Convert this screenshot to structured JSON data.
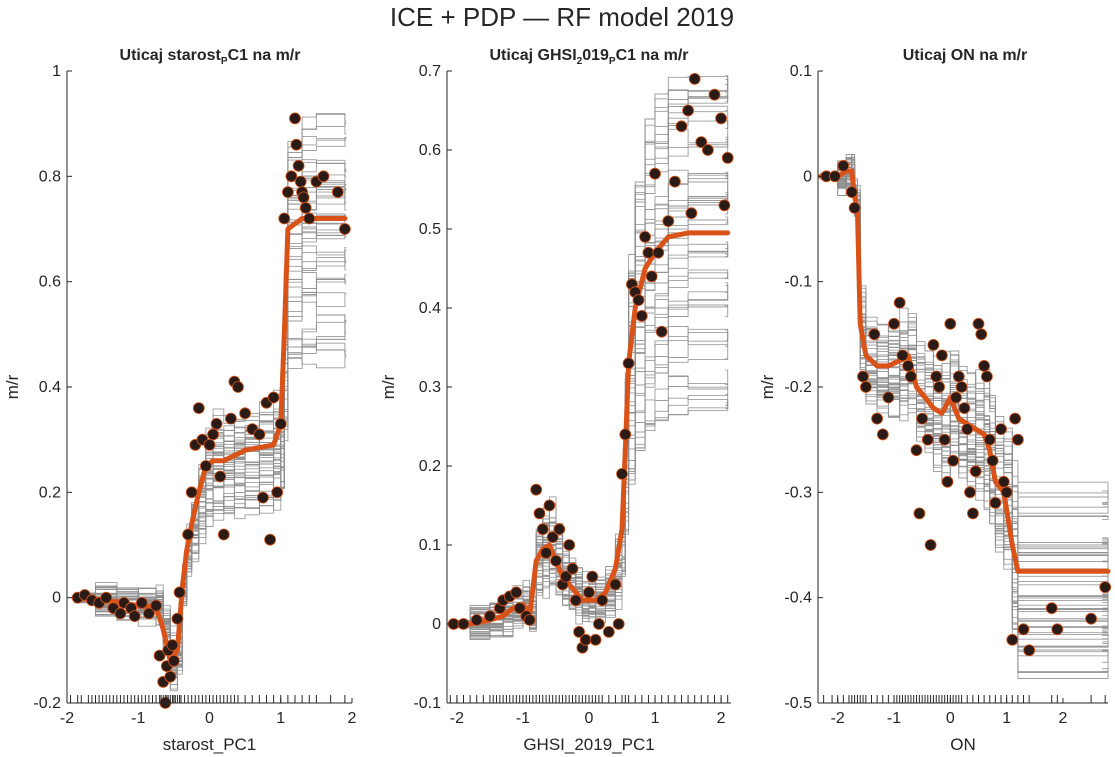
{
  "figure_title": "ICE + PDP — RF model 2019",
  "colors": {
    "ice": "#8c8c8c",
    "pdp": "#d95319",
    "marker_fill": "#2b1b17",
    "marker_edge": "#d95319",
    "axis": "#262626"
  },
  "chart_data": [
    {
      "type": "line",
      "title": "Uticaj  starost_PC1  na  m/r",
      "title_parts": {
        "pre": "Uticaj  starost",
        "sub": "P",
        "post": "C1  na  m/r"
      },
      "xlabel": "starost_PC1",
      "ylabel": "m/r",
      "xlim": [
        -2,
        2
      ],
      "ylim": [
        -0.2,
        1
      ],
      "xticks": [
        -2,
        -1,
        0,
        1,
        2
      ],
      "yticks": [
        -0.2,
        0,
        0.2,
        0.4,
        0.6,
        0.8,
        1
      ],
      "ytick_labels": [
        "-0.2",
        "0",
        "0.2",
        "0.4",
        "0.6",
        "0.8",
        "1"
      ],
      "pdp": {
        "name": "PDP",
        "x": [
          -1.9,
          -1.6,
          -1.3,
          -1.0,
          -0.75,
          -0.65,
          -0.55,
          -0.45,
          -0.38,
          -0.32,
          -0.25,
          -0.15,
          -0.05,
          0.05,
          0.2,
          0.35,
          0.5,
          0.7,
          0.9,
          1.0,
          1.05,
          1.1,
          1.3,
          1.5,
          1.9
        ],
        "y": [
          0,
          -0.003,
          -0.008,
          -0.015,
          -0.018,
          -0.06,
          -0.12,
          -0.1,
          0.02,
          0.09,
          0.14,
          0.2,
          0.25,
          0.26,
          0.26,
          0.27,
          0.28,
          0.285,
          0.29,
          0.33,
          0.5,
          0.7,
          0.72,
          0.72,
          0.72
        ]
      },
      "ice": {
        "n": 50,
        "x": [
          -1.9,
          -1.6,
          -1.3,
          -1.0,
          -0.75,
          -0.65,
          -0.55,
          -0.45,
          -0.38,
          -0.32,
          -0.25,
          -0.15,
          -0.05,
          0.05,
          0.2,
          0.35,
          0.5,
          0.7,
          0.9,
          1.0,
          1.05,
          1.1,
          1.3,
          1.5,
          1.9
        ],
        "start_min": -0.01,
        "start_max": 0.01,
        "end_min": 0.45,
        "end_max": 0.9
      },
      "points": {
        "x": [
          -1.85,
          -1.75,
          -1.65,
          -1.55,
          -1.45,
          -1.35,
          -1.25,
          -1.2,
          -1.1,
          -1.05,
          -0.95,
          -0.85,
          -0.75,
          -0.7,
          -0.65,
          -0.62,
          -0.6,
          -0.58,
          -0.55,
          -0.52,
          -0.5,
          -0.45,
          -0.42,
          -0.3,
          -0.25,
          -0.2,
          -0.15,
          -0.1,
          -0.05,
          0.0,
          0.05,
          0.1,
          0.15,
          0.2,
          0.3,
          0.35,
          0.4,
          0.5,
          0.6,
          0.7,
          0.75,
          0.8,
          0.85,
          0.9,
          0.95,
          1.0,
          1.05,
          1.1,
          1.15,
          1.2,
          1.22,
          1.25,
          1.28,
          1.3,
          1.32,
          1.35,
          1.4,
          1.5,
          1.6,
          1.8,
          1.9
        ],
        "y": [
          0,
          0.005,
          -0.005,
          -0.01,
          0,
          -0.02,
          -0.03,
          -0.01,
          -0.02,
          -0.035,
          -0.01,
          -0.03,
          -0.015,
          -0.11,
          -0.16,
          -0.2,
          -0.13,
          -0.1,
          -0.15,
          -0.09,
          -0.12,
          -0.04,
          0.01,
          0.12,
          0.2,
          0.29,
          0.36,
          0.3,
          0.25,
          0.29,
          0.31,
          0.33,
          0.23,
          0.12,
          0.34,
          0.41,
          0.4,
          0.35,
          0.32,
          0.31,
          0.19,
          0.37,
          0.11,
          0.38,
          0.2,
          0.33,
          0.72,
          0.77,
          0.8,
          0.91,
          0.86,
          0.82,
          0.79,
          0.77,
          0.76,
          0.74,
          0.72,
          0.79,
          0.8,
          0.77,
          0.7
        ]
      },
      "rug": [
        -1.95,
        -1.85,
        -1.8,
        -1.7,
        -1.65,
        -1.6,
        -1.55,
        -1.5,
        -1.45,
        -1.4,
        -1.35,
        -1.3,
        -1.25,
        -1.2,
        -1.15,
        -1.1,
        -1.05,
        -1.0,
        -0.95,
        -0.9,
        -0.85,
        -0.8,
        -0.75,
        -0.7,
        -0.68,
        -0.65,
        -0.62,
        -0.6,
        -0.58,
        -0.55,
        -0.52,
        -0.5,
        -0.48,
        -0.45,
        -0.42,
        -0.4,
        -0.35,
        -0.3,
        -0.25,
        -0.2,
        -0.15,
        -0.1,
        -0.05,
        0,
        0.05,
        0.1,
        0.15,
        0.2,
        0.25,
        0.3,
        0.35,
        0.4,
        0.5,
        0.6,
        0.7,
        0.8,
        0.9,
        1.0,
        1.1,
        1.2,
        1.3,
        1.4,
        1.5,
        1.7,
        1.9
      ]
    },
    {
      "type": "line",
      "title": "Uticaj  GHSI_2019_PC1  na  m/r",
      "title_parts": {
        "pre": "Uticaj  GHSI",
        "sub": "2",
        "post": "019",
        "sub2": "P",
        "post2": "C1  na  m/r"
      },
      "xlabel": "GHSI_2019_PC1",
      "ylabel": "m/r",
      "xlim": [
        -2.15,
        2.15
      ],
      "ylim": [
        -0.1,
        0.7
      ],
      "xticks": [
        -2,
        -1,
        0,
        1,
        2
      ],
      "yticks": [
        -0.1,
        0,
        0.1,
        0.2,
        0.3,
        0.4,
        0.5,
        0.6,
        0.7
      ],
      "ytick_labels": [
        "-0.1",
        "0",
        "0.1",
        "0.2",
        "0.3",
        "0.4",
        "0.5",
        "0.6",
        "0.7"
      ],
      "pdp": {
        "name": "PDP",
        "x": [
          -2.1,
          -1.8,
          -1.5,
          -1.3,
          -1.15,
          -1.0,
          -0.9,
          -0.8,
          -0.7,
          -0.6,
          -0.5,
          -0.4,
          -0.3,
          -0.2,
          -0.1,
          0.0,
          0.1,
          0.25,
          0.4,
          0.5,
          0.55,
          0.6,
          0.7,
          0.85,
          1.0,
          1.2,
          1.5,
          2.1
        ],
        "y": [
          0,
          0,
          0.005,
          0.01,
          0.02,
          0.025,
          0.01,
          0.08,
          0.095,
          0.1,
          0.08,
          0.06,
          0.05,
          0.04,
          0.03,
          0.03,
          0.03,
          0.04,
          0.07,
          0.12,
          0.22,
          0.33,
          0.4,
          0.45,
          0.47,
          0.49,
          0.495,
          0.495
        ]
      },
      "ice": {
        "n": 50,
        "x": [
          -2.1,
          -1.8,
          -1.5,
          -1.3,
          -1.15,
          -1.0,
          -0.9,
          -0.8,
          -0.7,
          -0.6,
          -0.5,
          -0.4,
          -0.3,
          -0.2,
          -0.1,
          0.0,
          0.1,
          0.25,
          0.4,
          0.5,
          0.55,
          0.6,
          0.7,
          0.85,
          1.0,
          1.2,
          1.5,
          2.1
        ],
        "start_min": -0.005,
        "start_max": 0.005,
        "end_min": 0.27,
        "end_max": 0.7
      },
      "points": {
        "x": [
          -2.05,
          -1.9,
          -1.7,
          -1.5,
          -1.35,
          -1.3,
          -1.2,
          -1.1,
          -1.05,
          -0.95,
          -0.9,
          -0.8,
          -0.75,
          -0.7,
          -0.65,
          -0.6,
          -0.55,
          -0.5,
          -0.45,
          -0.4,
          -0.35,
          -0.3,
          -0.25,
          -0.2,
          -0.15,
          -0.1,
          -0.05,
          0.0,
          0.05,
          0.1,
          0.15,
          0.2,
          0.3,
          0.4,
          0.45,
          0.5,
          0.55,
          0.6,
          0.65,
          0.7,
          0.75,
          0.8,
          0.85,
          0.9,
          0.95,
          1.0,
          1.05,
          1.1,
          1.2,
          1.3,
          1.4,
          1.5,
          1.55,
          1.6,
          1.7,
          1.8,
          1.9,
          2.0,
          2.05,
          2.1
        ],
        "y": [
          0,
          0,
          0.005,
          0.01,
          0.02,
          0.03,
          0.035,
          0.04,
          0.02,
          0.01,
          0.005,
          0.17,
          0.14,
          0.12,
          0.09,
          0.15,
          0.11,
          0.08,
          0.12,
          0.05,
          0.06,
          0.1,
          0.07,
          0.03,
          -0.01,
          -0.03,
          -0.02,
          0.04,
          0.06,
          -0.02,
          0.0,
          0.03,
          -0.01,
          0.05,
          0.0,
          0.19,
          0.24,
          0.33,
          0.43,
          0.42,
          0.41,
          0.39,
          0.49,
          0.47,
          0.44,
          0.57,
          0.47,
          0.37,
          0.51,
          0.56,
          0.63,
          0.65,
          0.52,
          0.69,
          0.61,
          0.6,
          0.67,
          0.64,
          0.53,
          0.59
        ]
      },
      "rug": [
        -2.1,
        -2.0,
        -1.9,
        -1.8,
        -1.7,
        -1.6,
        -1.5,
        -1.45,
        -1.4,
        -1.35,
        -1.3,
        -1.25,
        -1.2,
        -1.15,
        -1.1,
        -1.05,
        -1.0,
        -0.95,
        -0.9,
        -0.85,
        -0.8,
        -0.75,
        -0.7,
        -0.65,
        -0.6,
        -0.55,
        -0.5,
        -0.45,
        -0.4,
        -0.35,
        -0.3,
        -0.25,
        -0.2,
        -0.15,
        -0.1,
        -0.05,
        0,
        0.05,
        0.1,
        0.15,
        0.2,
        0.3,
        0.4,
        0.5,
        0.55,
        0.6,
        0.7,
        0.8,
        0.9,
        1.0,
        1.1,
        1.2,
        1.3,
        1.4,
        1.5,
        1.6,
        1.7,
        1.8,
        1.9,
        2.0,
        2.1
      ]
    },
    {
      "type": "line",
      "title": "Uticaj ON na m/r",
      "title_parts": {
        "pre": "Uticaj ON na m/r"
      },
      "xlabel": "ON",
      "ylabel": "m/r",
      "xlim": [
        -2.35,
        2.8
      ],
      "ylim": [
        -0.5,
        0.1
      ],
      "xticks": [
        -2,
        -1,
        0,
        1,
        2
      ],
      "yticks": [
        -0.5,
        -0.4,
        -0.3,
        -0.2,
        -0.1,
        0,
        0.1
      ],
      "ytick_labels": [
        "-0.5",
        "-0.4",
        "-0.3",
        "-0.2",
        "-0.1",
        "0",
        "0.1"
      ],
      "pdp": {
        "name": "PDP",
        "x": [
          -2.3,
          -2.0,
          -1.85,
          -1.75,
          -1.7,
          -1.65,
          -1.6,
          -1.5,
          -1.3,
          -1.1,
          -0.9,
          -0.75,
          -0.6,
          -0.45,
          -0.3,
          -0.15,
          0.0,
          0.15,
          0.3,
          0.45,
          0.6,
          0.7,
          0.8,
          0.95,
          1.1,
          1.2,
          2.8
        ],
        "y": [
          0,
          0,
          0.005,
          0.005,
          -0.02,
          -0.03,
          -0.14,
          -0.17,
          -0.18,
          -0.18,
          -0.175,
          -0.17,
          -0.2,
          -0.21,
          -0.22,
          -0.225,
          -0.21,
          -0.23,
          -0.235,
          -0.24,
          -0.245,
          -0.26,
          -0.29,
          -0.3,
          -0.35,
          -0.375,
          -0.375
        ]
      },
      "ice": {
        "n": 50,
        "x": [
          -2.3,
          -2.0,
          -1.85,
          -1.75,
          -1.7,
          -1.65,
          -1.6,
          -1.5,
          -1.3,
          -1.1,
          -0.9,
          -0.75,
          -0.6,
          -0.45,
          -0.3,
          -0.15,
          0.0,
          0.15,
          0.3,
          0.45,
          0.6,
          0.7,
          0.8,
          0.95,
          1.1,
          1.2,
          2.8
        ],
        "start_min": -0.003,
        "start_max": 0.003,
        "end_min": -0.46,
        "end_max": -0.3
      },
      "points": {
        "x": [
          -2.2,
          -2.05,
          -1.9,
          -1.75,
          -1.7,
          -1.55,
          -1.5,
          -1.35,
          -1.3,
          -1.2,
          -1.1,
          -1.0,
          -0.9,
          -0.85,
          -0.75,
          -0.7,
          -0.6,
          -0.55,
          -0.5,
          -0.4,
          -0.35,
          -0.3,
          -0.25,
          -0.2,
          -0.15,
          -0.1,
          -0.05,
          0.0,
          0.05,
          0.1,
          0.15,
          0.2,
          0.25,
          0.3,
          0.35,
          0.4,
          0.45,
          0.5,
          0.55,
          0.6,
          0.65,
          0.7,
          0.75,
          0.8,
          0.9,
          0.95,
          1.0,
          1.1,
          1.15,
          1.2,
          1.3,
          1.4,
          1.8,
          1.9,
          2.5,
          2.75
        ],
        "y": [
          0,
          0,
          0.01,
          -0.015,
          -0.03,
          -0.19,
          -0.2,
          -0.15,
          -0.23,
          -0.245,
          -0.21,
          -0.14,
          -0.12,
          -0.17,
          -0.18,
          -0.19,
          -0.26,
          -0.32,
          -0.23,
          -0.25,
          -0.35,
          -0.16,
          -0.19,
          -0.2,
          -0.17,
          -0.25,
          -0.29,
          -0.14,
          -0.27,
          -0.21,
          -0.19,
          -0.2,
          -0.22,
          -0.24,
          -0.3,
          -0.32,
          -0.28,
          -0.14,
          -0.15,
          -0.18,
          -0.19,
          -0.25,
          -0.27,
          -0.31,
          -0.24,
          -0.29,
          -0.3,
          -0.44,
          -0.23,
          -0.25,
          -0.43,
          -0.45,
          -0.41,
          -0.43,
          -0.42,
          -0.39
        ]
      },
      "rug": [
        -2.25,
        -2.1,
        -2.0,
        -1.9,
        -1.8,
        -1.75,
        -1.7,
        -1.65,
        -1.6,
        -1.55,
        -1.5,
        -1.4,
        -1.3,
        -1.2,
        -1.1,
        -1.0,
        -0.95,
        -0.9,
        -0.85,
        -0.8,
        -0.75,
        -0.7,
        -0.65,
        -0.6,
        -0.55,
        -0.5,
        -0.45,
        -0.4,
        -0.35,
        -0.3,
        -0.25,
        -0.2,
        -0.15,
        -0.1,
        -0.05,
        0,
        0.05,
        0.1,
        0.15,
        0.2,
        0.3,
        0.4,
        0.5,
        0.6,
        0.7,
        0.8,
        0.9,
        1.0,
        1.1,
        1.2,
        1.3,
        1.4,
        1.8,
        1.9,
        2.5,
        2.75
      ]
    }
  ]
}
